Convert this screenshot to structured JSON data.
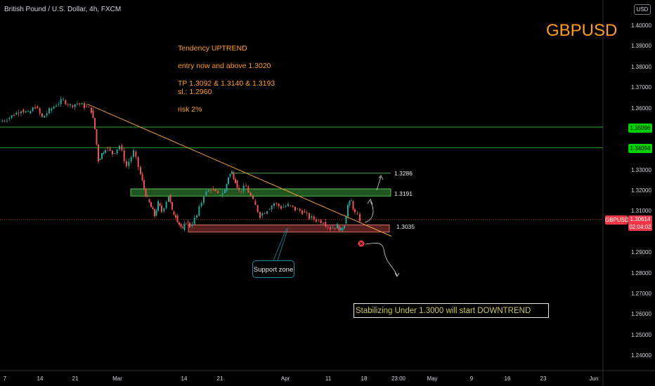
{
  "header": {
    "symbol_desc": "British Pound / U.S. Dollar, 4h, FXCM",
    "currency": "USD",
    "ticker": "GBPUSD"
  },
  "notes": {
    "line1": "Tendency UPTREND",
    "line2": "entry  now and above 1.3020",
    "line3": "TP  1.3092 & 1.3140  & 1.3193",
    "line4": "sl.: 1.2960",
    "line5": "risk 2%"
  },
  "annotations": {
    "downtrend_box": "Stabilizing Under 1.3000 will start DOWNTREND",
    "support_label": "Support zone",
    "level_1": "1.3286",
    "level_2": "1.3191",
    "level_3": "1.3035"
  },
  "price_tags": {
    "green_1": "1.35096",
    "green_2": "1.34094",
    "current_symbol": "GBPUSD",
    "current_price": "1.30614",
    "countdown": "02:04:02"
  },
  "colors": {
    "background": "#000000",
    "up_candle": "#26a69a",
    "down_candle": "#ef5350",
    "trendline": "#f0a040",
    "note_text": "#ff9c26",
    "resistance_zone": "#3a9a3a",
    "support_zone": "#a33a3a",
    "horizontal_line": "#2fbf2f",
    "current_price": "#f23645"
  },
  "chart_data": {
    "type": "candlestick",
    "title": "British Pound / U.S. Dollar, 4h, FXCM",
    "ylim": [
      1.235,
      1.41
    ],
    "y_ticks": [
      "1.40000",
      "1.39000",
      "1.38000",
      "1.37000",
      "1.36000",
      "1.33000",
      "1.32000",
      "1.31000",
      "1.29000",
      "1.28000",
      "1.27000",
      "1.26000",
      "1.25000",
      "1.24000"
    ],
    "x_ticks": [
      "7",
      "14",
      "21",
      "Mar",
      "14",
      "21",
      "Apr",
      "11",
      "18",
      "23:00",
      "May",
      "9",
      "16",
      "23",
      "Jun"
    ],
    "price_path": [
      [
        0,
        1.3535
      ],
      [
        10,
        1.355
      ],
      [
        20,
        1.357
      ],
      [
        30,
        1.3595
      ],
      [
        40,
        1.3575
      ],
      [
        50,
        1.361
      ],
      [
        60,
        1.3555
      ],
      [
        70,
        1.359
      ],
      [
        80,
        1.362
      ],
      [
        90,
        1.364
      ],
      [
        100,
        1.3615
      ],
      [
        110,
        1.3625
      ],
      [
        120,
        1.361
      ],
      [
        130,
        1.359
      ],
      [
        135,
        1.35
      ],
      [
        140,
        1.335
      ],
      [
        145,
        1.338
      ],
      [
        150,
        1.341
      ],
      [
        160,
        1.338
      ],
      [
        170,
        1.342
      ],
      [
        180,
        1.332
      ],
      [
        190,
        1.339
      ],
      [
        200,
        1.328
      ],
      [
        205,
        1.321
      ],
      [
        210,
        1.316
      ],
      [
        215,
        1.312
      ],
      [
        220,
        1.308
      ],
      [
        225,
        1.314
      ],
      [
        230,
        1.31
      ],
      [
        240,
        1.318
      ],
      [
        245,
        1.31
      ],
      [
        250,
        1.308
      ],
      [
        255,
        1.304
      ],
      [
        260,
        1.301
      ],
      [
        265,
        1.305
      ],
      [
        270,
        1.303
      ],
      [
        280,
        1.308
      ],
      [
        290,
        1.318
      ],
      [
        300,
        1.321
      ],
      [
        310,
        1.318
      ],
      [
        320,
        1.32
      ],
      [
        325,
        1.327
      ],
      [
        330,
        1.329
      ],
      [
        335,
        1.325
      ],
      [
        340,
        1.32
      ],
      [
        350,
        1.322
      ],
      [
        360,
        1.315
      ],
      [
        370,
        1.308
      ],
      [
        380,
        1.311
      ],
      [
        390,
        1.314
      ],
      [
        400,
        1.312
      ],
      [
        410,
        1.313
      ],
      [
        420,
        1.311
      ],
      [
        430,
        1.31
      ],
      [
        440,
        1.307
      ],
      [
        450,
        1.306
      ],
      [
        460,
        1.305
      ],
      [
        470,
        1.302
      ],
      [
        480,
        1.303
      ],
      [
        485,
        1.301
      ],
      [
        490,
        1.304
      ],
      [
        495,
        1.313
      ],
      [
        500,
        1.315
      ],
      [
        505,
        1.309
      ],
      [
        512,
        1.3061
      ]
    ],
    "horizontal_lines": [
      1.35096,
      1.34094,
      1.30614
    ],
    "zones": [
      {
        "name": "resistance",
        "low": 1.3175,
        "high": 1.321
      },
      {
        "name": "support",
        "low": 1.3,
        "high": 1.3035
      }
    ],
    "levels": [
      1.3286,
      1.3191,
      1.3035
    ],
    "trendline": {
      "from": [
        125,
        1.362
      ],
      "to": [
        557,
        1.298
      ]
    }
  }
}
